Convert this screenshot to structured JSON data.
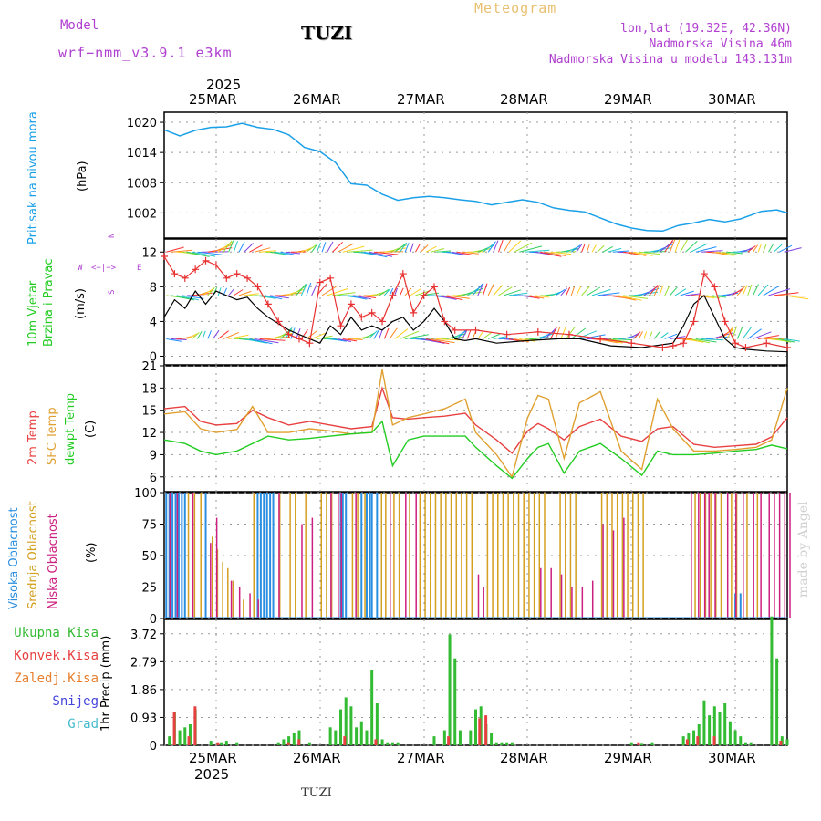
{
  "header": {
    "model_label": "Model",
    "model_name": "wrf−nmm_v3.9.1  e3km",
    "station": "TUZI",
    "meteogram": "Meteogram",
    "coords": "lon,lat (19.32E, 42.36N)",
    "elevation": "Nadmorska Visina 46m",
    "model_elevation": "Nadmorska Visina u modelu 143.131m"
  },
  "footer": {
    "station": "TUZI",
    "watermark": "made by Angel"
  },
  "colors": {
    "pressure": "#1aa0e8",
    "wind_speed": "#000000",
    "gust": "#e83030",
    "t2m": "#e84040",
    "sfc": "#e0a030",
    "dew": "#22cc22",
    "high_cloud": "#2a8fe0",
    "mid_cloud": "#d4a020",
    "low_cloud": "#cc2080",
    "total_precip": "#33bb33",
    "conv_precip": "#e84040",
    "freezing": "#e88030",
    "snow": "#4444dd",
    "grad": "#44bbcc",
    "compass": "#b040d0",
    "label_purple": "#b040d0"
  },
  "chart_data": [
    {
      "type": "line",
      "title": "Pritisak na nivou mora",
      "ylabel": "(hPa)",
      "ylim": [
        997,
        1022
      ],
      "yticks": [
        "1020",
        "1014",
        "1008",
        "1002"
      ],
      "x_days": [
        0.0,
        0.15,
        0.3,
        0.45,
        0.6,
        0.75,
        0.9,
        1.05,
        1.2,
        1.35,
        1.5,
        1.65,
        1.8,
        1.95,
        2.1,
        2.25,
        2.4,
        2.55,
        2.7,
        2.85,
        3.0,
        3.15,
        3.3,
        3.45,
        3.6,
        3.75,
        3.9,
        4.05,
        4.2,
        4.35,
        4.5,
        4.65,
        4.8,
        4.95,
        5.1,
        5.25,
        5.4,
        5.55,
        5.75,
        5.9,
        6.0
      ],
      "values": [
        1018.5,
        1017.3,
        1018.4,
        1019.0,
        1019.1,
        1019.8,
        1019.0,
        1018.6,
        1017.5,
        1015.0,
        1014.2,
        1012.0,
        1007.8,
        1007.5,
        1005.7,
        1004.5,
        1005.0,
        1005.3,
        1005.0,
        1004.6,
        1004.3,
        1003.6,
        1004.1,
        1004.6,
        1004.1,
        1003.0,
        1002.5,
        1002.2,
        1001.0,
        999.8,
        999.0,
        998.5,
        998.4,
        999.5,
        1000.0,
        1000.7,
        1000.2,
        1000.8,
        1002.3,
        1002.6,
        1002.0
      ]
    },
    {
      "type": "line",
      "title": "10m Vjetar Brzina i Pravac",
      "ylabel": "(m/s)",
      "ylim": [
        -1,
        13.5
      ],
      "yticks": [
        "12",
        "8",
        "4",
        "0"
      ],
      "compass": [
        "N",
        "W",
        "E",
        "S"
      ],
      "series": [
        {
          "name": "speed",
          "x_days": [
            0.0,
            0.1,
            0.2,
            0.3,
            0.4,
            0.5,
            0.6,
            0.7,
            0.8,
            0.9,
            1.0,
            1.2,
            1.4,
            1.5,
            1.6,
            1.7,
            1.8,
            1.9,
            2.0,
            2.1,
            2.2,
            2.3,
            2.4,
            2.5,
            2.6,
            2.7,
            2.8,
            2.9,
            3.0,
            3.2,
            3.5,
            3.8,
            4.0,
            4.3,
            4.6,
            4.9,
            5.0,
            5.1,
            5.2,
            5.3,
            5.4,
            5.5,
            5.6,
            5.8,
            6.0
          ],
          "values": [
            4.5,
            6.5,
            5.5,
            7.5,
            6.0,
            7.5,
            7.0,
            6.5,
            6.8,
            5.5,
            4.5,
            3.0,
            2.0,
            1.5,
            3.5,
            2.5,
            4.5,
            3.0,
            3.5,
            3.0,
            4.0,
            4.5,
            3.0,
            4.0,
            5.5,
            4.0,
            2.0,
            1.8,
            2.0,
            1.5,
            1.8,
            2.0,
            2.0,
            1.2,
            1.0,
            1.5,
            3.5,
            6.0,
            7.0,
            4.5,
            2.0,
            1.0,
            0.8,
            0.6,
            0.5
          ]
        },
        {
          "name": "gust",
          "x_days": [
            0.0,
            0.1,
            0.2,
            0.3,
            0.4,
            0.5,
            0.6,
            0.7,
            0.8,
            0.9,
            1.0,
            1.1,
            1.2,
            1.3,
            1.4,
            1.5,
            1.6,
            1.7,
            1.8,
            1.9,
            2.0,
            2.1,
            2.2,
            2.3,
            2.4,
            2.5,
            2.6,
            2.7,
            2.8,
            3.0,
            3.3,
            3.6,
            3.9,
            4.2,
            4.5,
            4.8,
            4.9,
            5.0,
            5.1,
            5.2,
            5.3,
            5.4,
            5.5,
            5.6,
            5.8,
            6.0
          ],
          "values": [
            11.5,
            9.5,
            9.0,
            10.0,
            11.0,
            10.5,
            9.0,
            9.5,
            9.0,
            8.0,
            6.0,
            4.0,
            2.5,
            2.0,
            1.5,
            8.5,
            9.0,
            3.5,
            6.0,
            4.5,
            5.0,
            4.0,
            7.0,
            9.5,
            5.0,
            7.0,
            8.0,
            4.0,
            3.0,
            3.0,
            2.5,
            2.8,
            2.5,
            2.0,
            1.5,
            1.0,
            1.2,
            1.5,
            4.0,
            9.5,
            8.0,
            4.0,
            1.5,
            1.0,
            1.5,
            1.0
          ]
        }
      ],
      "barb_rows": [
        {
          "name": "upper",
          "level": 12
        },
        {
          "name": "middle",
          "level": 7
        },
        {
          "name": "lower",
          "level": 2
        }
      ]
    },
    {
      "type": "line",
      "title": "2m Temp",
      "ylabel": "(C)",
      "ylim": [
        4,
        21
      ],
      "yticks": [
        "21",
        "18",
        "15",
        "12",
        "9",
        "6"
      ],
      "legend": [
        "2m Temp",
        "SFC Temp",
        "dewpt Temp"
      ],
      "series": [
        {
          "name": "2m Temp",
          "x_days": [
            0.0,
            0.2,
            0.35,
            0.5,
            0.7,
            0.85,
            1.0,
            1.2,
            1.4,
            1.6,
            1.8,
            2.0,
            2.1,
            2.2,
            2.35,
            2.5,
            2.7,
            2.9,
            3.0,
            3.2,
            3.35,
            3.5,
            3.6,
            3.7,
            3.85,
            4.0,
            4.2,
            4.4,
            4.6,
            4.75,
            4.9,
            5.1,
            5.3,
            5.5,
            5.7,
            5.85,
            6.0
          ],
          "values": [
            15.2,
            15.5,
            13.5,
            13.0,
            13.2,
            15.0,
            14.0,
            13.0,
            13.5,
            13.0,
            12.5,
            12.8,
            18.0,
            14.0,
            13.8,
            14.0,
            14.2,
            14.6,
            13.0,
            11.0,
            9.2,
            12.2,
            13.2,
            12.5,
            11.0,
            12.8,
            13.8,
            11.5,
            10.8,
            12.5,
            12.8,
            10.4,
            10.0,
            10.2,
            10.4,
            11.4,
            14.0
          ]
        },
        {
          "name": "SFC Temp",
          "x_days": [
            0.0,
            0.2,
            0.35,
            0.5,
            0.7,
            0.85,
            1.0,
            1.2,
            1.4,
            1.6,
            1.8,
            2.0,
            2.1,
            2.2,
            2.35,
            2.5,
            2.7,
            2.9,
            3.0,
            3.2,
            3.35,
            3.5,
            3.6,
            3.7,
            3.85,
            4.0,
            4.2,
            4.4,
            4.6,
            4.75,
            4.9,
            5.1,
            5.3,
            5.5,
            5.7,
            5.85,
            6.0
          ],
          "values": [
            14.5,
            14.8,
            12.5,
            12.0,
            12.4,
            15.5,
            12.0,
            12.0,
            12.5,
            12.2,
            11.8,
            12.0,
            20.5,
            13.0,
            14.0,
            14.5,
            15.2,
            16.5,
            12.0,
            9.0,
            6.0,
            14.0,
            17.0,
            16.5,
            8.5,
            16.0,
            17.5,
            9.5,
            7.0,
            16.5,
            12.5,
            9.5,
            9.5,
            9.7,
            10.0,
            11.0,
            18.0
          ]
        },
        {
          "name": "dewpt Temp",
          "x_days": [
            0.0,
            0.2,
            0.35,
            0.5,
            0.7,
            0.85,
            1.0,
            1.2,
            1.4,
            1.6,
            1.8,
            2.0,
            2.1,
            2.2,
            2.35,
            2.5,
            2.7,
            2.9,
            3.0,
            3.2,
            3.35,
            3.5,
            3.6,
            3.7,
            3.85,
            4.0,
            4.2,
            4.4,
            4.6,
            4.75,
            4.9,
            5.1,
            5.3,
            5.5,
            5.7,
            5.85,
            6.0
          ],
          "values": [
            11.0,
            10.5,
            9.5,
            9.0,
            9.5,
            10.5,
            11.5,
            11.0,
            11.2,
            11.5,
            11.8,
            12.0,
            13.5,
            7.5,
            11.0,
            11.5,
            11.5,
            11.5,
            10.0,
            7.5,
            5.8,
            8.5,
            10.0,
            10.5,
            6.5,
            9.5,
            10.5,
            8.5,
            6.2,
            9.5,
            9.0,
            9.0,
            9.2,
            9.5,
            9.7,
            10.3,
            9.8
          ]
        }
      ]
    },
    {
      "type": "bar",
      "title": "Oblacnost",
      "ylabel": "(%)",
      "ylim": [
        0,
        100
      ],
      "yticks": [
        "100",
        "75",
        "50",
        "25",
        "0"
      ],
      "legend": [
        "Visoka Oblacnost",
        "Srednja Oblacnost",
        "Niska Oblacnost"
      ],
      "series": [
        {
          "name": "Visoka Oblacnost",
          "x_days": [
            0.02,
            0.05,
            0.08,
            0.11,
            0.14,
            0.17,
            0.2,
            0.4,
            0.9,
            0.93,
            0.96,
            0.99,
            1.02,
            1.05,
            1.7,
            1.72,
            1.75,
            1.9,
            1.95,
            1.98,
            2.0,
            2.05,
            5.5,
            5.55
          ],
          "values": [
            100,
            100,
            100,
            100,
            100,
            100,
            100,
            100,
            100,
            100,
            100,
            100,
            100,
            100,
            100,
            100,
            100,
            100,
            100,
            100,
            100,
            100,
            20,
            20
          ]
        },
        {
          "name": "Srednja Oblacnost",
          "x_days": [
            0.22,
            0.28,
            0.34,
            0.45,
            0.5,
            0.55,
            0.6,
            0.65,
            0.75,
            0.85,
            1.1,
            1.2,
            1.25,
            1.35,
            1.5,
            1.55,
            1.6,
            1.8,
            1.85,
            1.92,
            2.08,
            2.12,
            2.2,
            2.25,
            2.35,
            2.45,
            2.5,
            2.55,
            2.6,
            2.65,
            2.7,
            2.75,
            2.8,
            2.85,
            2.9,
            2.95,
            3.1,
            3.15,
            3.2,
            3.25,
            3.3,
            3.35,
            3.4,
            3.45,
            3.5,
            3.55,
            3.6,
            3.65,
            3.8,
            3.85,
            3.9,
            3.95,
            4.2,
            4.25,
            4.3,
            4.35,
            4.4,
            4.45,
            4.5,
            4.55,
            4.6,
            5.1,
            5.15,
            5.2,
            5.25,
            5.3,
            5.35,
            5.45,
            5.5,
            5.6,
            5.7
          ],
          "values": [
            100,
            100,
            100,
            65,
            55,
            45,
            40,
            30,
            15,
            100,
            100,
            100,
            100,
            100,
            100,
            100,
            100,
            100,
            100,
            100,
            100,
            100,
            100,
            100,
            100,
            100,
            100,
            100,
            100,
            100,
            100,
            100,
            100,
            100,
            100,
            100,
            100,
            100,
            100,
            100,
            100,
            100,
            100,
            100,
            100,
            100,
            100,
            100,
            100,
            100,
            100,
            100,
            100,
            100,
            100,
            100,
            100,
            100,
            100,
            100,
            100,
            100,
            100,
            100,
            100,
            100,
            100,
            100,
            100,
            100,
            100
          ]
        },
        {
          "name": "Niska Oblacnost",
          "x_days": [
            0.03,
            0.1,
            0.25,
            0.42,
            0.48,
            0.62,
            0.7,
            0.8,
            0.88,
            1.08,
            1.3,
            1.4,
            1.58,
            1.65,
            1.68,
            1.82,
            2.15,
            2.3,
            2.4,
            3.0,
            3.05,
            3.6,
            3.7,
            3.8,
            3.9,
            4.0,
            4.1,
            4.2,
            4.3,
            4.4,
            5.05,
            5.12,
            5.18,
            5.22,
            5.28,
            5.4,
            5.48,
            5.55,
            5.65,
            5.72,
            5.8,
            5.85,
            5.9,
            5.95,
            6.0
          ],
          "values": [
            100,
            100,
            100,
            60,
            80,
            30,
            25,
            20,
            15,
            100,
            75,
            80,
            100,
            100,
            100,
            100,
            100,
            100,
            100,
            35,
            25,
            40,
            40,
            35,
            25,
            25,
            30,
            75,
            70,
            80,
            100,
            100,
            100,
            100,
            100,
            100,
            100,
            100,
            100,
            100,
            100,
            100,
            100,
            100,
            100
          ]
        }
      ]
    },
    {
      "type": "bar",
      "title": "1hr Precip",
      "ylabel": "1hr Precip (mm)",
      "ylim": [
        0,
        4.2
      ],
      "yticks": [
        "3.72",
        "2.79",
        "1.86",
        "0.93",
        "0"
      ],
      "legend": [
        "Ukupna Kisa",
        "Konvek.Kisa",
        "Zaledj.Kisa",
        "Snijeg",
        "Grad"
      ],
      "series": [
        {
          "name": "Ukupna Kisa",
          "x_days": [
            0.05,
            0.1,
            0.15,
            0.2,
            0.25,
            0.3,
            0.45,
            0.55,
            0.6,
            0.7,
            1.1,
            1.15,
            1.2,
            1.25,
            1.3,
            1.4,
            1.6,
            1.65,
            1.7,
            1.75,
            1.8,
            1.85,
            1.9,
            1.95,
            2.0,
            2.05,
            2.1,
            2.15,
            2.2,
            2.25,
            2.6,
            2.7,
            2.75,
            2.8,
            2.85,
            2.95,
            3.0,
            3.05,
            3.1,
            3.15,
            3.2,
            3.25,
            3.3,
            3.35,
            4.5,
            4.6,
            4.7,
            5.0,
            5.05,
            5.1,
            5.15,
            5.2,
            5.25,
            5.3,
            5.35,
            5.4,
            5.45,
            5.5,
            5.55,
            5.6,
            5.65,
            5.85,
            5.9,
            5.95,
            6.0
          ],
          "values": [
            0.3,
            1.1,
            0.5,
            0.6,
            0.7,
            1.2,
            0.15,
            0.1,
            0.15,
            0.1,
            0.1,
            0.2,
            0.3,
            0.4,
            0.5,
            0.1,
            0.6,
            0.5,
            1.2,
            1.6,
            1.3,
            0.6,
            0.8,
            0.5,
            2.5,
            1.4,
            0.2,
            0.1,
            0.1,
            0.1,
            0.3,
            0.5,
            3.7,
            2.9,
            0.5,
            0.5,
            1.2,
            1.3,
            0.7,
            0.4,
            0.1,
            0.1,
            0.1,
            0.1,
            0.1,
            0.05,
            0.1,
            0.3,
            0.4,
            0.5,
            0.7,
            1.5,
            1.0,
            1.3,
            1.1,
            1.4,
            0.8,
            0.5,
            0.3,
            0.1,
            0.1,
            4.3,
            2.9,
            0.3,
            0.2
          ]
        },
        {
          "name": "Konvek.Kisa",
          "x_days": [
            0.08,
            0.22,
            0.28,
            0.5,
            1.18,
            1.28,
            1.72,
            2.02,
            2.72,
            3.02,
            3.08,
            4.55,
            5.02,
            5.12,
            5.28,
            5.92
          ],
          "values": [
            1.1,
            0.3,
            1.3,
            0.1,
            0.1,
            0.2,
            0.3,
            0.2,
            0.3,
            0.9,
            1.0,
            0.1,
            0.2,
            0.3,
            0.3,
            0.15
          ]
        }
      ]
    }
  ],
  "timeline": {
    "year": "2025",
    "days": [
      "25MAR",
      "26MAR",
      "27MAR",
      "28MAR",
      "29MAR",
      "30MAR"
    ]
  }
}
